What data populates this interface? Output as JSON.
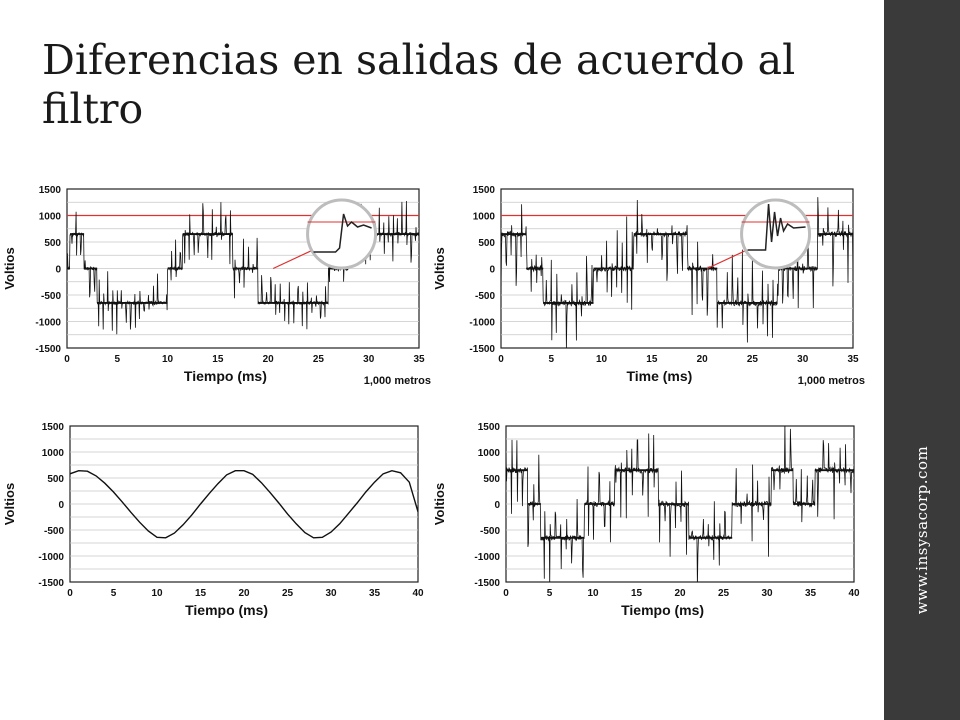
{
  "slide": {
    "title": "Diferencias en salidas de acuerdo al filtro",
    "side_text": "www.insysacorp.com",
    "accent_color": "#3a3a3a"
  },
  "chart_data": [
    {
      "id": "c1",
      "type": "line",
      "xlabel": "Tiempo (ms)",
      "ylabel": "Voltios",
      "note": "1,000 metros",
      "xlim": [
        0,
        35
      ],
      "ylim": [
        -1500,
        1500
      ],
      "xticks": [
        0,
        5,
        10,
        15,
        20,
        25,
        30,
        35
      ],
      "yticks": [
        1500,
        1000,
        500,
        0,
        -500,
        -1000,
        -1500
      ],
      "grid": true,
      "reference_line": 1000,
      "reference_color": "#e03030",
      "inset": true,
      "levels": [
        [
          0,
          0.3,
          0
        ],
        [
          0.3,
          1.7,
          650
        ],
        [
          1.7,
          3,
          0
        ],
        [
          3,
          10,
          -650
        ],
        [
          10,
          11.5,
          0
        ],
        [
          11.5,
          16.5,
          650
        ],
        [
          16.5,
          19,
          0
        ],
        [
          19,
          26,
          -650
        ],
        [
          26,
          28,
          0
        ],
        [
          28,
          35,
          650
        ]
      ],
      "noise": 260,
      "spikes": 9
    },
    {
      "id": "c2",
      "type": "line",
      "xlabel": "Time (ms)",
      "ylabel": "Voltios",
      "note": "1,000 metros",
      "xlim": [
        0,
        35
      ],
      "ylim": [
        -1500,
        1500
      ],
      "xticks": [
        0,
        5,
        10,
        15,
        20,
        25,
        30,
        35
      ],
      "yticks": [
        1500,
        1000,
        500,
        0,
        -500,
        -1000,
        -1500
      ],
      "grid": true,
      "reference_line": 1000,
      "reference_color": "#e03030",
      "inset": true,
      "levels": [
        [
          0,
          2.5,
          650
        ],
        [
          2.5,
          4.2,
          0
        ],
        [
          4.2,
          9.2,
          -650
        ],
        [
          9.2,
          13.2,
          0
        ],
        [
          13.2,
          18.5,
          650
        ],
        [
          18.5,
          21.5,
          0
        ],
        [
          21.5,
          27.5,
          -650
        ],
        [
          27.5,
          31.5,
          0
        ],
        [
          31.5,
          35,
          650
        ]
      ],
      "noise": 420,
      "spikes": 10
    },
    {
      "id": "c3",
      "type": "line",
      "xlabel": "Tiempo (ms)",
      "ylabel": "Voltios",
      "xlim": [
        0,
        40
      ],
      "ylim": [
        -1500,
        1500
      ],
      "xticks": [
        0,
        5,
        10,
        15,
        20,
        25,
        30,
        35,
        40
      ],
      "yticks": [
        1500,
        1000,
        500,
        0,
        -500,
        -1000,
        -1500
      ],
      "grid": true,
      "x": [
        0,
        1,
        2,
        3,
        4,
        5,
        6,
        7,
        8,
        9,
        10,
        11,
        12,
        13,
        14,
        15,
        16,
        17,
        18,
        19,
        20,
        21,
        22,
        23,
        24,
        25,
        26,
        27,
        28,
        29,
        30,
        31,
        32,
        33,
        34,
        35,
        36,
        37,
        38,
        39,
        40
      ],
      "values": [
        580,
        640,
        630,
        540,
        400,
        230,
        40,
        -160,
        -350,
        -520,
        -640,
        -650,
        -560,
        -400,
        -210,
        0,
        200,
        390,
        560,
        640,
        640,
        570,
        410,
        220,
        20,
        -190,
        -380,
        -550,
        -650,
        -640,
        -540,
        -380,
        -180,
        20,
        230,
        420,
        580,
        640,
        600,
        420,
        -150
      ]
    },
    {
      "id": "c4",
      "type": "line",
      "xlabel": "Tiempo (ms)",
      "ylabel": "Voltios",
      "xlim": [
        0,
        40
      ],
      "ylim": [
        -1500,
        1500
      ],
      "xticks": [
        0,
        5,
        10,
        15,
        20,
        25,
        30,
        35,
        40
      ],
      "yticks": [
        1500,
        1000,
        500,
        0,
        -500,
        -1000,
        -1500
      ],
      "grid": true,
      "levels": [
        [
          0,
          2.5,
          650
        ],
        [
          2.5,
          4,
          0
        ],
        [
          4,
          9,
          -650
        ],
        [
          9,
          12.5,
          0
        ],
        [
          12.5,
          17.5,
          650
        ],
        [
          17.5,
          21,
          0
        ],
        [
          21,
          26,
          -650
        ],
        [
          26,
          30.5,
          0
        ],
        [
          30.5,
          33,
          650
        ],
        [
          33,
          35.5,
          0
        ],
        [
          35.5,
          40,
          650
        ]
      ],
      "noise": 430,
      "spikes": 11
    }
  ]
}
